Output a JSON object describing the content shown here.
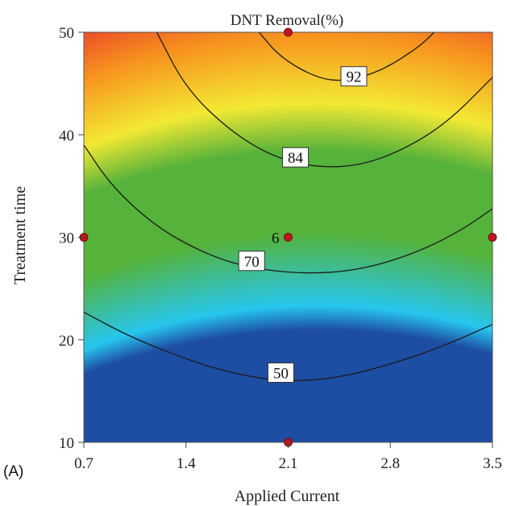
{
  "panel_label": "(A)",
  "chart_data": {
    "type": "contour",
    "title": "DNT Removal(%)",
    "xlabel": "Applied Current",
    "ylabel": "Treatment time",
    "xlim": [
      0.7,
      3.5
    ],
    "ylim": [
      10,
      50
    ],
    "xticks": [
      "0.7",
      "1.4",
      "2.1",
      "2.8",
      "3.5"
    ],
    "yticks": [
      "10",
      "20",
      "30",
      "40",
      "50"
    ],
    "colors": {
      "low": "#1e4ea3",
      "cyan": "#27c6ee",
      "green": "#55b23a",
      "yellow": "#f3e933",
      "orange": "#f7931e",
      "high": "#e8302d",
      "contour_line": "#1a1a1a",
      "design_point": "#c0151f"
    },
    "contours": [
      {
        "level": "50",
        "points": [
          [
            0.7,
            22.7
          ],
          [
            1.0,
            20.4
          ],
          [
            1.4,
            18.1
          ],
          [
            1.75,
            16.6
          ],
          [
            2.1,
            15.9
          ],
          [
            2.45,
            16.3
          ],
          [
            2.8,
            17.6
          ],
          [
            3.15,
            19.3
          ],
          [
            3.5,
            21.5
          ]
        ]
      },
      {
        "level": "70",
        "points": [
          [
            0.7,
            39.0
          ],
          [
            0.9,
            34.8
          ],
          [
            1.2,
            31.0
          ],
          [
            1.5,
            28.6
          ],
          [
            1.8,
            27.1
          ],
          [
            2.2,
            26.4
          ],
          [
            2.6,
            26.8
          ],
          [
            3.0,
            28.6
          ],
          [
            3.3,
            30.8
          ],
          [
            3.5,
            32.8
          ]
        ]
      },
      {
        "level": "84",
        "points": [
          [
            1.2,
            50.0
          ],
          [
            1.4,
            44.5
          ],
          [
            1.7,
            40.4
          ],
          [
            2.0,
            37.8
          ],
          [
            2.3,
            36.8
          ],
          [
            2.6,
            37.0
          ],
          [
            2.9,
            38.6
          ],
          [
            3.2,
            41.3
          ],
          [
            3.5,
            45.6
          ]
        ]
      },
      {
        "level": "92",
        "points": [
          [
            1.9,
            50.0
          ],
          [
            2.05,
            47.5
          ],
          [
            2.3,
            45.5
          ],
          [
            2.5,
            45.2
          ],
          [
            2.75,
            46.3
          ],
          [
            3.0,
            48.6
          ],
          [
            3.1,
            50.0
          ]
        ]
      }
    ],
    "contour_labels": [
      {
        "text": "92",
        "x": 2.55,
        "y": 45.7
      },
      {
        "text": "84",
        "x": 2.15,
        "y": 37.8
      },
      {
        "text": "70",
        "x": 1.85,
        "y": 27.7
      },
      {
        "text": "50",
        "x": 2.05,
        "y": 16.8
      }
    ],
    "design_points": [
      {
        "x": 2.1,
        "y": 50
      },
      {
        "x": 0.7,
        "y": 30
      },
      {
        "x": 2.1,
        "y": 30,
        "label": "6"
      },
      {
        "x": 3.5,
        "y": 30
      },
      {
        "x": 2.1,
        "y": 10
      }
    ]
  }
}
